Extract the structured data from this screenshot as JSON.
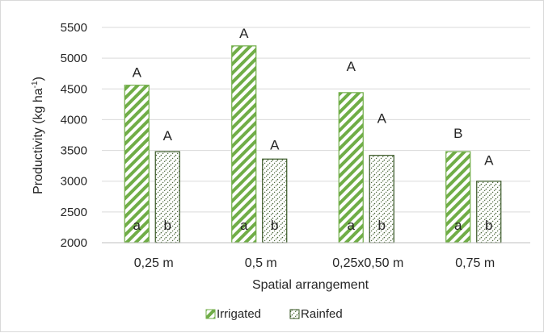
{
  "chart_data": {
    "type": "bar",
    "categories": [
      "0,25 m",
      "0,5 m",
      "0,25x0,50 m",
      "0,75 m"
    ],
    "series": [
      {
        "name": "Irrigated",
        "values": [
          4560,
          5200,
          4440,
          3480
        ],
        "top_letters": [
          "A",
          "A",
          "A",
          "B"
        ],
        "base_letters": [
          "a",
          "a",
          "a",
          "a"
        ],
        "pattern": "diagonal-hatch",
        "color": "#70ad47"
      },
      {
        "name": "Rainfed",
        "values": [
          3480,
          3360,
          3420,
          3000
        ],
        "top_letters": [
          "A",
          "A",
          "A",
          "A"
        ],
        "base_letters": [
          "b",
          "b",
          "b",
          "b"
        ],
        "pattern": "dotted-hatch",
        "color": "#375623"
      }
    ],
    "title": "",
    "xlabel": "Spatial arrangement",
    "ylabel": {
      "main": "Productivity  (kg ha",
      "superscript": "-1",
      "close": ")"
    },
    "ylim": [
      2000,
      5500
    ],
    "yticks": [
      "2000",
      "2500",
      "3000",
      "3500",
      "4000",
      "4500",
      "5000",
      "5500"
    ],
    "grid": true,
    "legend_position": "bottom"
  }
}
